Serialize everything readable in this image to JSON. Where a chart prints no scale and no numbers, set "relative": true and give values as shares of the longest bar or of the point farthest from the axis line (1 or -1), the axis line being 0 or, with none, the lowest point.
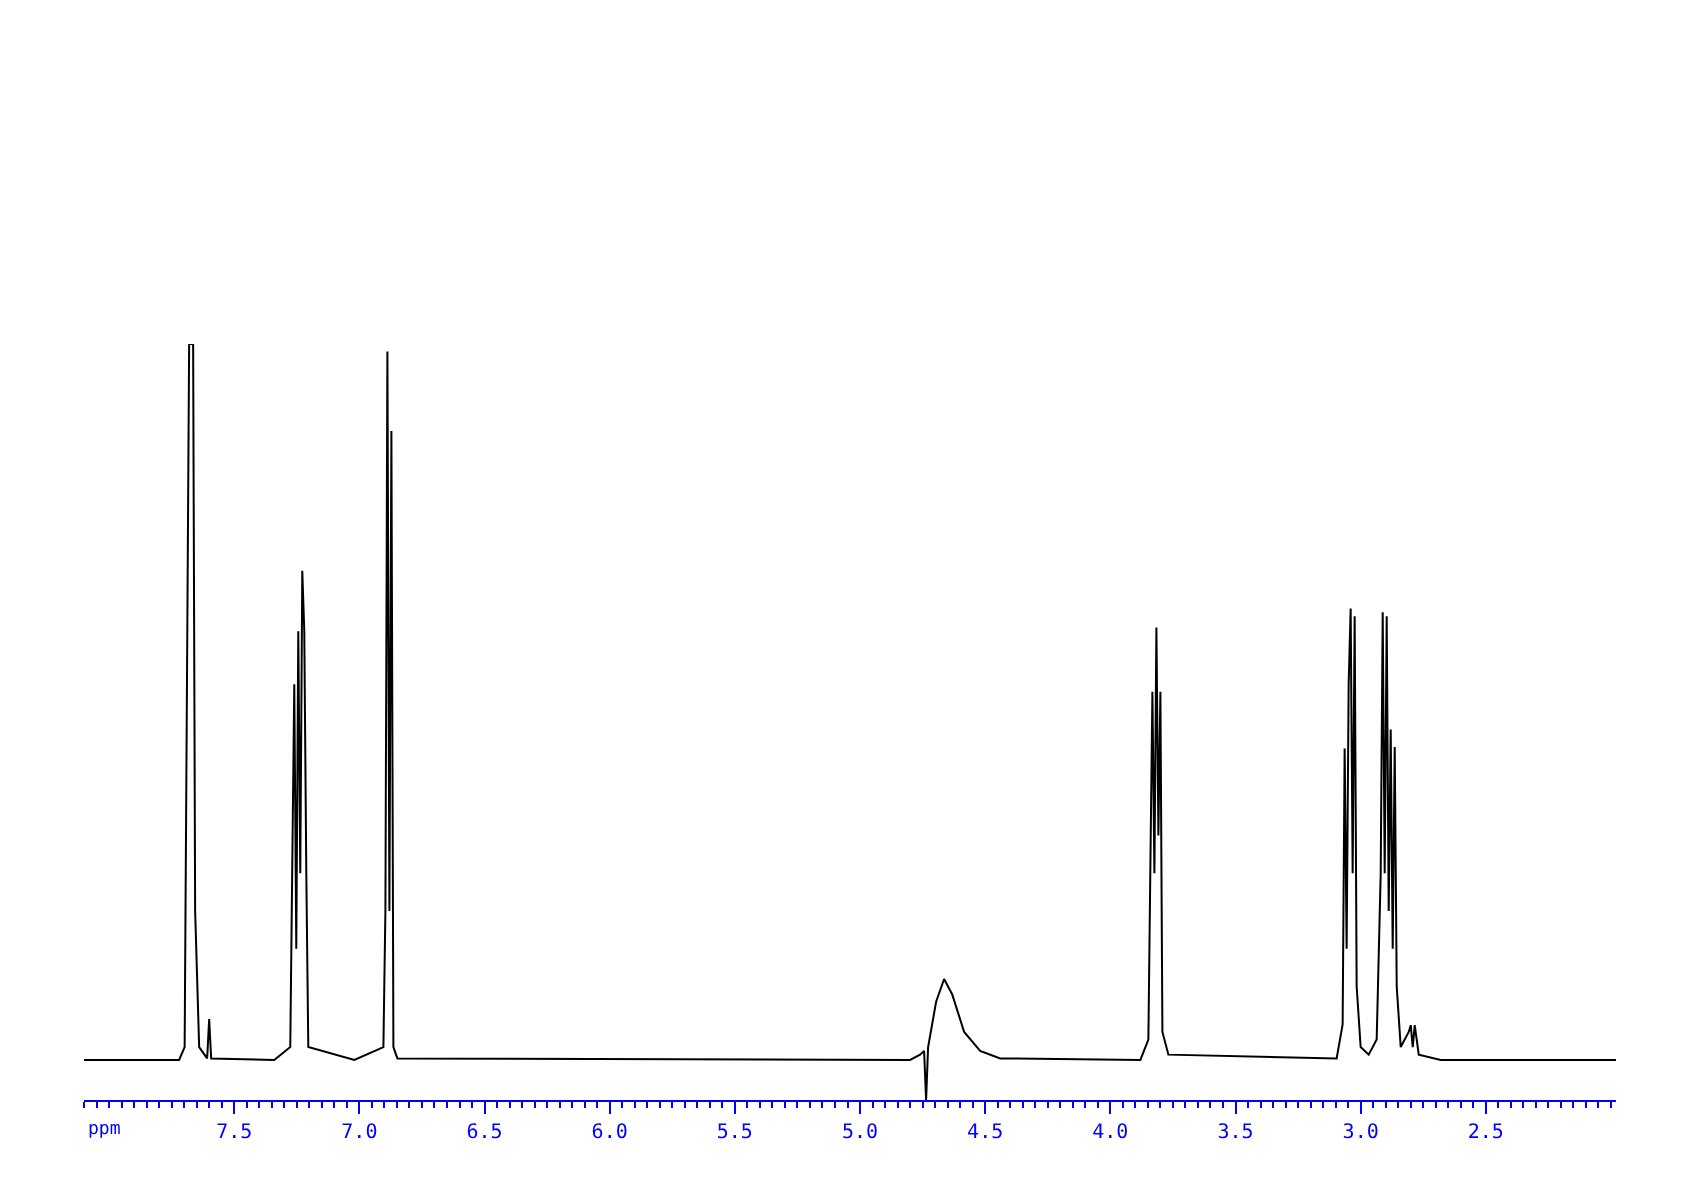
{
  "chart_data": {
    "type": "line",
    "xlabel": "ppm",
    "relative": true,
    "xlim": [
      8.1,
      1.98
    ],
    "xticks": [
      {
        "value": 7.5,
        "label": "7.5"
      },
      {
        "value": 7.0,
        "label": "7.0"
      },
      {
        "value": 6.5,
        "label": "6.5"
      },
      {
        "value": 6.0,
        "label": "6.0"
      },
      {
        "value": 5.5,
        "label": "5.5"
      },
      {
        "value": 5.0,
        "label": "5.0"
      },
      {
        "value": 4.5,
        "label": "4.5"
      },
      {
        "value": 4.0,
        "label": "4.0"
      },
      {
        "value": 3.5,
        "label": "3.5"
      },
      {
        "value": 3.0,
        "label": "3.0"
      },
      {
        "value": 2.5,
        "label": "2.5"
      }
    ],
    "grid": false,
    "marker": "none",
    "line_style": "solid",
    "series": [
      {
        "color": "#000000",
        "x": [
          8.1,
          7.72,
          7.698,
          7.68,
          7.664,
          7.656,
          7.64,
          7.608,
          7.6,
          7.592,
          7.34,
          7.276,
          7.26,
          7.252,
          7.244,
          7.236,
          7.228,
          7.22,
          7.212,
          7.204,
          7.02,
          6.904,
          6.896,
          6.888,
          6.88,
          6.872,
          6.864,
          6.848,
          4.8,
          4.76,
          4.744,
          4.736,
          4.728,
          4.696,
          4.664,
          4.632,
          4.584,
          4.52,
          4.44,
          3.88,
          3.848,
          3.832,
          3.824,
          3.816,
          3.808,
          3.8,
          3.792,
          3.768,
          3.096,
          3.072,
          3.064,
          3.056,
          3.048,
          3.04,
          3.032,
          3.024,
          3.016,
          3.0,
          2.968,
          2.936,
          2.92,
          2.912,
          2.904,
          2.896,
          2.888,
          2.88,
          2.872,
          2.864,
          2.856,
          2.84,
          2.808,
          2.8,
          2.792,
          2.784,
          2.768,
          2.68,
          1.98
        ],
        "values": [
          0.053,
          0.053,
          0.07,
          1.0,
          1.0,
          0.25,
          0.07,
          0.055,
          0.107,
          0.055,
          0.053,
          0.07,
          0.55,
          0.2,
          0.62,
          0.3,
          0.7,
          0.62,
          0.3,
          0.07,
          0.053,
          0.07,
          0.25,
          0.99,
          0.25,
          0.885,
          0.07,
          0.055,
          0.053,
          0.06,
          0.065,
          0,
          0.07,
          0.13,
          0.16,
          0.14,
          0.09,
          0.065,
          0.055,
          0.053,
          0.08,
          0.54,
          0.3,
          0.625,
          0.35,
          0.54,
          0.09,
          0.06,
          0.055,
          0.1,
          0.465,
          0.2,
          0.55,
          0.65,
          0.3,
          0.64,
          0.15,
          0.07,
          0.06,
          0.08,
          0.3,
          0.645,
          0.3,
          0.64,
          0.25,
          0.49,
          0.2,
          0.467,
          0.15,
          0.07,
          0.09,
          0.099,
          0.07,
          0.099,
          0.06,
          0.053,
          0.053
        ]
      }
    ]
  }
}
